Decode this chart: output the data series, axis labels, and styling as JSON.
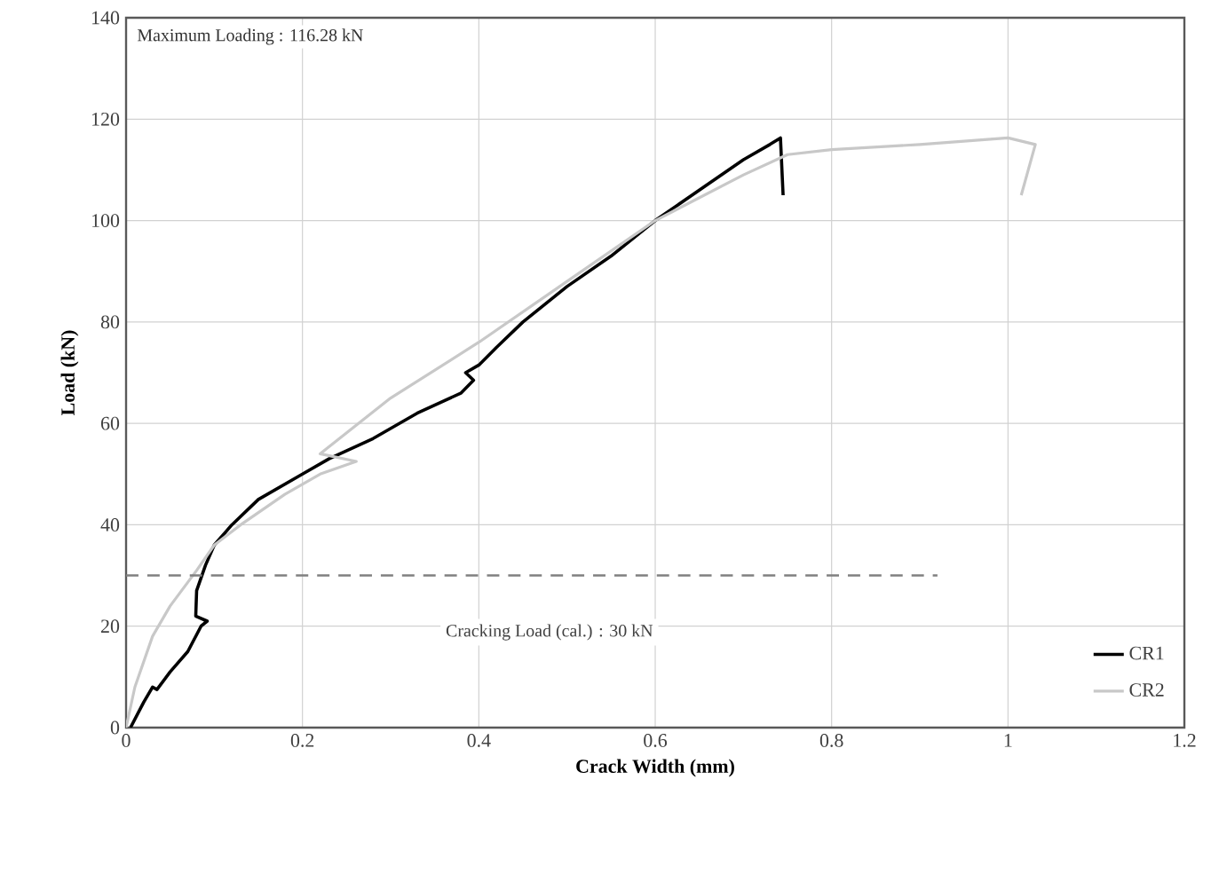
{
  "chart_data": {
    "type": "line",
    "xlabel": "Crack Width (mm)",
    "ylabel": "Load (kN)",
    "xlim": [
      0,
      1.2
    ],
    "xticks": [
      0,
      0.2,
      0.4,
      0.6,
      0.8,
      1,
      1.2
    ],
    "ylim": [
      0,
      140
    ],
    "yticks": [
      0,
      20,
      40,
      60,
      80,
      100,
      120,
      140
    ],
    "grid": true,
    "legend": "bottom right",
    "marker": "none",
    "line_style": "solid",
    "annotations": [
      "Maximum Loading : 116.28 kN"
    ],
    "ref_lines": [
      {
        "axis": "y",
        "value": 30,
        "label": "Cracking Load (cal.) : 30 kN",
        "color": "#808080",
        "line_style": "dashed"
      }
    ],
    "series": [
      {
        "name": "CR1",
        "color": "#000000",
        "x": [
          0.005,
          0.02,
          0.03,
          0.035,
          0.05,
          0.07,
          0.085,
          0.092,
          0.079,
          0.08,
          0.09,
          0.1,
          0.12,
          0.15,
          0.2,
          0.23,
          0.28,
          0.33,
          0.38,
          0.394,
          0.385,
          0.4,
          0.42,
          0.45,
          0.5,
          0.55,
          0.6,
          0.65,
          0.7,
          0.73,
          0.742,
          0.745
        ],
        "values": [
          0,
          5,
          8,
          7.5,
          11,
          15,
          20,
          21,
          22,
          27,
          32,
          36,
          40,
          45,
          50,
          53,
          57,
          62,
          66,
          68.5,
          70,
          71.5,
          75,
          80,
          87,
          93,
          100,
          106,
          112,
          115,
          116.3,
          105
        ]
      },
      {
        "name": "CR2",
        "color": "#c8c8c8",
        "x": [
          0,
          0.01,
          0.03,
          0.05,
          0.08,
          0.1,
          0.13,
          0.18,
          0.22,
          0.261,
          0.22,
          0.3,
          0.4,
          0.5,
          0.6,
          0.7,
          0.75,
          0.8,
          0.9,
          1.0,
          1.031,
          1.015
        ],
        "values": [
          0,
          8,
          18,
          24,
          31,
          36,
          40,
          46,
          50,
          52.5,
          54,
          65,
          76,
          88,
          100,
          109,
          113,
          114,
          115,
          116.3,
          115,
          105
        ]
      }
    ]
  }
}
